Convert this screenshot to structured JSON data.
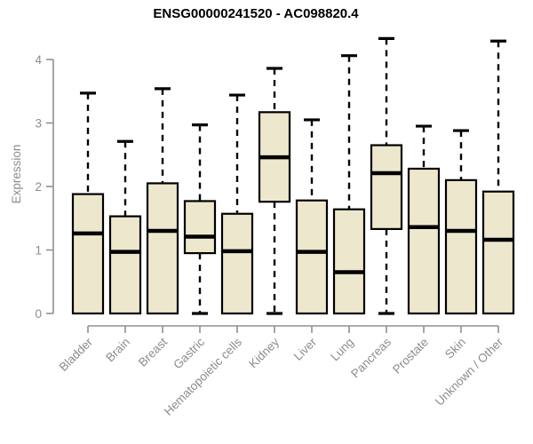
{
  "chart_data": {
    "type": "boxplot",
    "title": "ENSG00000241520 - AC098820.4",
    "xlabel": "",
    "ylabel": "Expression",
    "ylim": [
      0,
      4.4
    ],
    "yticks": [
      0,
      1,
      2,
      3,
      4
    ],
    "ytick_labels": [
      "0",
      "1",
      "2",
      "3",
      "4"
    ],
    "grid": false,
    "legend": "none",
    "categories": [
      "Bladder",
      "Brain",
      "Breast",
      "Gastric",
      "Hematopoietic cells",
      "Kidney",
      "Liver",
      "Lung",
      "Pancreas",
      "Prostate",
      "Skin",
      "Unknown / Other"
    ],
    "series": [
      {
        "name": "Bladder",
        "whisker_low": null,
        "q1": 0,
        "median": 1.26,
        "q3": 1.88,
        "whisker_high": 3.47
      },
      {
        "name": "Brain",
        "whisker_low": null,
        "q1": 0,
        "median": 0.97,
        "q3": 1.53,
        "whisker_high": 2.71
      },
      {
        "name": "Breast",
        "whisker_low": null,
        "q1": 0,
        "median": 1.3,
        "q3": 2.05,
        "whisker_high": 3.54
      },
      {
        "name": "Gastric",
        "whisker_low": 0,
        "q1": 0.95,
        "median": 1.21,
        "q3": 1.77,
        "whisker_high": 2.97
      },
      {
        "name": "Hematopoietic cells",
        "whisker_low": null,
        "q1": 0,
        "median": 0.98,
        "q3": 1.57,
        "whisker_high": 3.44
      },
      {
        "name": "Kidney",
        "whisker_low": 0,
        "q1": 1.76,
        "median": 2.46,
        "q3": 3.17,
        "whisker_high": 3.86
      },
      {
        "name": "Liver",
        "whisker_low": null,
        "q1": 0,
        "median": 0.97,
        "q3": 1.78,
        "whisker_high": 3.05
      },
      {
        "name": "Lung",
        "whisker_low": null,
        "q1": 0,
        "median": 0.65,
        "q3": 1.64,
        "whisker_high": 4.06
      },
      {
        "name": "Pancreas",
        "whisker_low": 0,
        "q1": 1.33,
        "median": 2.21,
        "q3": 2.65,
        "whisker_high": 4.33
      },
      {
        "name": "Prostate",
        "whisker_low": null,
        "q1": 0,
        "median": 1.36,
        "q3": 2.28,
        "whisker_high": 2.95
      },
      {
        "name": "Skin",
        "whisker_low": null,
        "q1": 0,
        "median": 1.3,
        "q3": 2.1,
        "whisker_high": 2.88
      },
      {
        "name": "Unknown / Other",
        "whisker_low": null,
        "q1": 0,
        "median": 1.16,
        "q3": 1.92,
        "whisker_high": 4.29
      }
    ],
    "colors": {
      "box_fill": "#EDE8CD",
      "box_border": "#000000",
      "median": "#000000",
      "whisker": "#000000",
      "axis_line": "#909090",
      "axis_text": "#8C8C8C",
      "title_text": "#000000"
    }
  }
}
